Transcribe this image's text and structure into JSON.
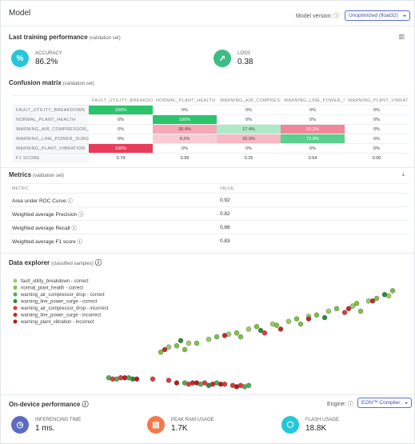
{
  "header": {
    "title": "Model",
    "version_label": "Model version:",
    "version_value": "Unoptimized (float32)"
  },
  "training": {
    "title": "Last training performance",
    "subtitle": "(validation set)",
    "cards": [
      {
        "label": "ACCURACY",
        "value": "86.2%"
      },
      {
        "label": "LOSS",
        "value": "0.38"
      }
    ]
  },
  "confusion": {
    "title": "Confusion matrix",
    "subtitle": "(validation set)",
    "columns": [
      "FAULT_UTILITY_BREAKDOWN",
      "NORMAL_PLANT_HEALTH",
      "WARNING_AIR_COMPRESSOR_DROP",
      "WARNING_LINE_POWER_SURGE",
      "WARNING_PLANT_VIBRATION"
    ],
    "rows": [
      {
        "label": "FAULT_UTILITY_BREAKDOWN",
        "cells": [
          "100%",
          "0%",
          "0%",
          "0%",
          "0%"
        ]
      },
      {
        "label": "NORMAL_PLANT_HEALTH",
        "cells": [
          "0%",
          "100%",
          "0%",
          "0%",
          "0%"
        ]
      },
      {
        "label": "WARNING_AIR_COMPRESSOR_DROP",
        "cells": [
          "0%",
          "30.4%",
          "17.4%",
          "52.2%",
          "0%"
        ]
      },
      {
        "label": "WARNING_LINE_POWER_SURGE",
        "cells": [
          "0%",
          "8.2%",
          "20.0%",
          "71.8%",
          "0%"
        ]
      },
      {
        "label": "WARNING_PLANT_VIBRATION",
        "cells": [
          "100%",
          "0%",
          "0%",
          "0%",
          "0%"
        ]
      }
    ],
    "f1_label": "F1 SCORE",
    "f1": [
      "0.74",
      "0.99",
      "0.25",
      "0.64",
      "0.00"
    ]
  },
  "metrics": {
    "title": "Metrics",
    "subtitle": "(validation set)",
    "headers": [
      "METRIC",
      "VALUE"
    ],
    "rows": [
      [
        "Area under ROC Curve",
        "0.92"
      ],
      [
        "Weighted average Precision",
        "0.82"
      ],
      [
        "Weighted average Recall",
        "0.86"
      ],
      [
        "Weighted average F1 score",
        "0.83"
      ]
    ]
  },
  "explorer": {
    "title": "Data explorer",
    "subtitle": "(classified samples)",
    "series": [
      {
        "name": "fault_utility_breakdown - correct",
        "color": "#9ccc65",
        "x": [
          40,
          45,
          50,
          55,
          60,
          66,
          70,
          75,
          80,
          86,
          90,
          95
        ],
        "y": [
          58,
          55,
          52,
          48,
          44,
          40,
          38,
          34,
          30,
          26,
          22,
          18
        ]
      },
      {
        "name": "normal_plant_health - correct",
        "color": "#7cc242",
        "x": [
          38,
          42,
          47,
          52,
          57,
          62,
          67,
          72,
          77,
          82,
          87,
          92,
          96,
          44,
          58,
          73,
          88
        ],
        "y": [
          62,
          57,
          55,
          50,
          47,
          42,
          41,
          36,
          33,
          28,
          24,
          20,
          14,
          60,
          50,
          40,
          30
        ]
      },
      {
        "name": "warning_air_compressor_drop - correct",
        "color": "#4caf50",
        "x": [
          25,
          27,
          30,
          44,
          48,
          52,
          59,
          60
        ],
        "y": [
          82,
          83,
          82,
          86,
          87,
          86,
          89,
          88
        ]
      },
      {
        "name": "warning_line_power_surge - correct",
        "color": "#2e8b3a",
        "x": [
          43,
          63,
          79,
          94,
          50,
          31
        ],
        "y": [
          53,
          45,
          35,
          17,
          88,
          83
        ]
      },
      {
        "name": "warning_air_compressor_drop - incorrect",
        "color": "#e53935",
        "x": [
          26,
          28,
          36,
          40,
          45,
          49,
          54,
          56,
          58,
          64,
          84
        ],
        "y": [
          83,
          82,
          83,
          84,
          87,
          86,
          87,
          88,
          88,
          47,
          31
        ]
      },
      {
        "name": "warning_line_power_surge - incorrect",
        "color": "#c62828",
        "x": [
          39,
          54,
          68,
          75,
          85,
          91,
          46,
          51
        ],
        "y": [
          60,
          49,
          44,
          36,
          28,
          22,
          86,
          87
        ]
      },
      {
        "name": "warning_plant_vibration - incorrect",
        "color": "#b71c1c",
        "x": [
          29,
          32,
          42,
          47,
          53,
          57
        ],
        "y": [
          82,
          83,
          86,
          86,
          87,
          89
        ]
      }
    ]
  },
  "device": {
    "title": "On-device performance",
    "engine_label": "Engine:",
    "engine_value": "EON™ Compiler",
    "cards": [
      {
        "label": "INFERENCING TIME",
        "value": "1 ms."
      },
      {
        "label": "PEAK RAM USAGE",
        "value": "1.7K"
      },
      {
        "label": "FLASH USAGE",
        "value": "18.8K"
      }
    ]
  }
}
